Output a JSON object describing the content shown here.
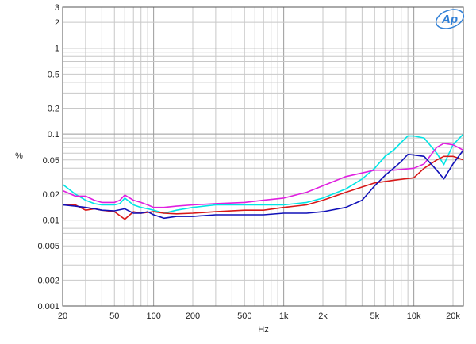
{
  "chart_data": {
    "type": "line",
    "title": "",
    "xlabel": "Hz",
    "ylabel": "%",
    "xscale": "log",
    "yscale": "log",
    "xlim": [
      20,
      24000
    ],
    "ylim": [
      0.001,
      3
    ],
    "grid": true,
    "x_ticks": [
      {
        "v": 20,
        "label": "20"
      },
      {
        "v": 50,
        "label": "50"
      },
      {
        "v": 100,
        "label": "100"
      },
      {
        "v": 200,
        "label": "200"
      },
      {
        "v": 500,
        "label": "500"
      },
      {
        "v": 1000,
        "label": "1k"
      },
      {
        "v": 2000,
        "label": "2k"
      },
      {
        "v": 5000,
        "label": "5k"
      },
      {
        "v": 10000,
        "label": "10k"
      },
      {
        "v": 20000,
        "label": "20k"
      }
    ],
    "y_ticks": [
      {
        "v": 3,
        "label": "3"
      },
      {
        "v": 2,
        "label": "2"
      },
      {
        "v": 1,
        "label": "1"
      },
      {
        "v": 0.5,
        "label": "0.5"
      },
      {
        "v": 0.2,
        "label": "0.2"
      },
      {
        "v": 0.1,
        "label": "0.1"
      },
      {
        "v": 0.05,
        "label": "0.05"
      },
      {
        "v": 0.02,
        "label": "0.02"
      },
      {
        "v": 0.01,
        "label": "0.01"
      },
      {
        "v": 0.005,
        "label": "0.005"
      },
      {
        "v": 0.002,
        "label": "0.002"
      },
      {
        "v": 0.001,
        "label": "0.001"
      }
    ],
    "logo_text": "Ap",
    "series": [
      {
        "color": "#00e5e5",
        "x": [
          20,
          25,
          30,
          35,
          40,
          45,
          50,
          55,
          60,
          70,
          80,
          90,
          100,
          120,
          150,
          200,
          300,
          500,
          700,
          1000,
          1500,
          2000,
          3000,
          4000,
          5000,
          6000,
          7000,
          8000,
          9000,
          10000,
          12000,
          15000,
          17000,
          20000,
          24000
        ],
        "y": [
          0.026,
          0.02,
          0.017,
          0.0155,
          0.015,
          0.015,
          0.015,
          0.0155,
          0.018,
          0.015,
          0.014,
          0.0135,
          0.013,
          0.012,
          0.013,
          0.014,
          0.015,
          0.015,
          0.015,
          0.015,
          0.016,
          0.018,
          0.023,
          0.03,
          0.04,
          0.055,
          0.065,
          0.08,
          0.095,
          0.095,
          0.09,
          0.06,
          0.044,
          0.075,
          0.1
        ]
      },
      {
        "color": "#e020e0",
        "x": [
          20,
          25,
          30,
          35,
          40,
          45,
          50,
          55,
          60,
          70,
          80,
          90,
          100,
          120,
          150,
          200,
          300,
          500,
          700,
          1000,
          1500,
          2000,
          3000,
          5000,
          7000,
          10000,
          12000,
          15000,
          17000,
          20000,
          24000
        ],
        "y": [
          0.022,
          0.019,
          0.019,
          0.017,
          0.016,
          0.016,
          0.016,
          0.017,
          0.0195,
          0.017,
          0.016,
          0.015,
          0.014,
          0.014,
          0.0145,
          0.015,
          0.0155,
          0.016,
          0.017,
          0.018,
          0.021,
          0.025,
          0.032,
          0.038,
          0.038,
          0.04,
          0.045,
          0.07,
          0.078,
          0.075,
          0.065
        ]
      },
      {
        "color": "#d81818",
        "x": [
          20,
          25,
          30,
          35,
          40,
          50,
          60,
          70,
          80,
          100,
          120,
          150,
          200,
          300,
          500,
          700,
          1000,
          1500,
          2000,
          3000,
          5000,
          7000,
          10000,
          12000,
          15000,
          17000,
          20000,
          24000
        ],
        "y": [
          0.015,
          0.015,
          0.013,
          0.0135,
          0.013,
          0.0125,
          0.0102,
          0.0125,
          0.012,
          0.0125,
          0.012,
          0.0118,
          0.012,
          0.0125,
          0.013,
          0.013,
          0.014,
          0.015,
          0.017,
          0.021,
          0.027,
          0.029,
          0.031,
          0.04,
          0.05,
          0.055,
          0.055,
          0.05
        ]
      },
      {
        "color": "#1010b8",
        "x": [
          20,
          25,
          30,
          35,
          40,
          50,
          60,
          70,
          80,
          90,
          100,
          120,
          150,
          200,
          300,
          500,
          700,
          1000,
          1500,
          2000,
          3000,
          4000,
          5000,
          6000,
          7000,
          8000,
          9000,
          10000,
          12000,
          15000,
          17000,
          20000,
          24000
        ],
        "y": [
          0.015,
          0.0145,
          0.014,
          0.0135,
          0.013,
          0.0128,
          0.0135,
          0.012,
          0.012,
          0.0125,
          0.0115,
          0.0105,
          0.011,
          0.011,
          0.0115,
          0.0115,
          0.0115,
          0.012,
          0.012,
          0.0125,
          0.014,
          0.017,
          0.025,
          0.033,
          0.04,
          0.048,
          0.058,
          0.057,
          0.055,
          0.038,
          0.03,
          0.045,
          0.065
        ]
      }
    ]
  }
}
